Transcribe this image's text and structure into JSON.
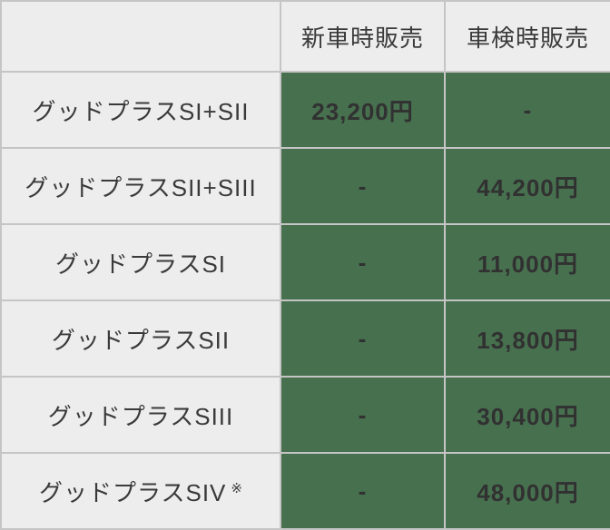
{
  "table": {
    "columns": [
      "",
      "新車時販売",
      "車検時販売"
    ],
    "rows": [
      {
        "label": "グッドプラスSI+SII",
        "note": "",
        "new_car": "23,200円",
        "inspection": "-"
      },
      {
        "label": "グッドプラスSII+SIII",
        "note": "",
        "new_car": "-",
        "inspection": "44,200円"
      },
      {
        "label": "グッドプラスSI",
        "note": "",
        "new_car": "-",
        "inspection": "11,000円"
      },
      {
        "label": "グッドプラスSII",
        "note": "",
        "new_car": "-",
        "inspection": "13,800円"
      },
      {
        "label": "グッドプラスSIII",
        "note": "",
        "new_car": "-",
        "inspection": "30,400円"
      },
      {
        "label": "グッドプラスSIV",
        "note": "※",
        "new_car": "-",
        "inspection": "48,000円"
      }
    ],
    "colors": {
      "header_bg": "#ededed",
      "label_bg": "#ededed",
      "value_bg": "#47704f",
      "border": "#c5c5c5",
      "header_text": "#3a3a3a",
      "label_text": "#3a3a3a",
      "value_text": "#313131"
    }
  },
  "chart_data": {
    "type": "table",
    "title": "",
    "columns": [
      "",
      "新車時販売",
      "車検時販売"
    ],
    "rows": [
      [
        "グッドプラスSI+SII",
        "23,200円",
        "-"
      ],
      [
        "グッドプラスSII+SIII",
        "-",
        "44,200円"
      ],
      [
        "グッドプラスSI",
        "-",
        "11,000円"
      ],
      [
        "グッドプラスSII",
        "-",
        "13,800円"
      ],
      [
        "グッドプラスSIII",
        "-",
        "30,400円"
      ],
      [
        "グッドプラスSIV ※",
        "-",
        "48,000円"
      ]
    ]
  }
}
